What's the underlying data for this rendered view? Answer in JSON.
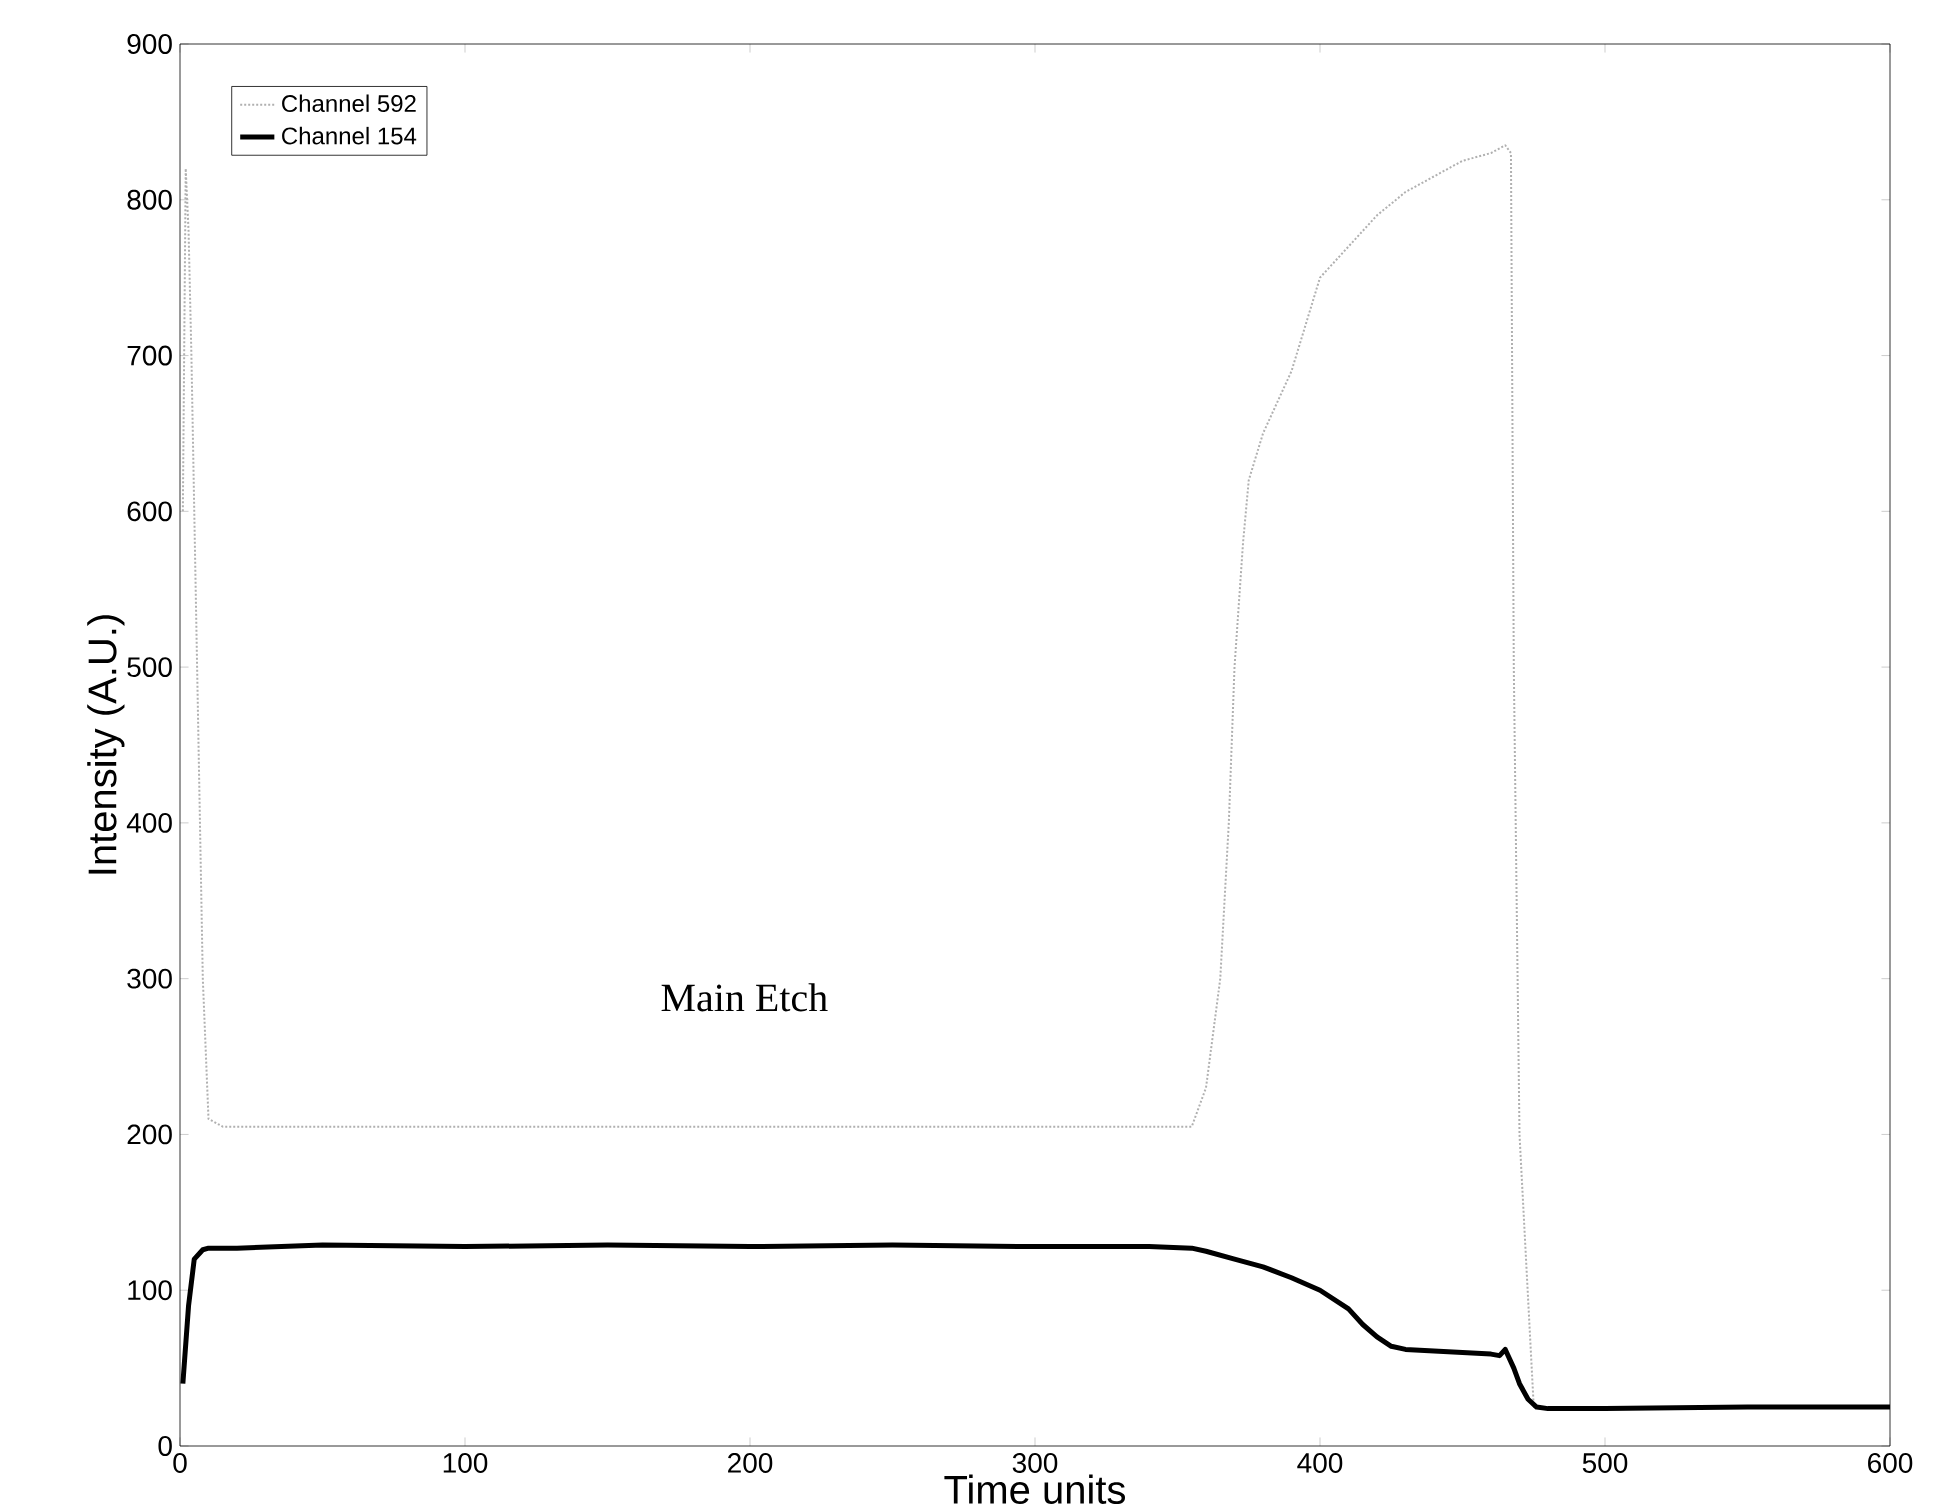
{
  "chart_data": {
    "type": "line",
    "xlabel": "Time units",
    "ylabel": "Intensity (A.U.)",
    "xlim": [
      0,
      600
    ],
    "ylim": [
      0,
      900
    ],
    "xticks": [
      0,
      100,
      200,
      300,
      400,
      500,
      600
    ],
    "yticks": [
      0,
      100,
      200,
      300,
      400,
      500,
      600,
      700,
      800,
      900
    ],
    "grid": false,
    "legend": "top left",
    "annotations": [
      "Main Etch"
    ],
    "series": [
      {
        "name": "Channel 592",
        "color": "#b0b0b0",
        "line_style": "dotted",
        "x": [
          1,
          2,
          3,
          4,
          5,
          6,
          7,
          8,
          10,
          15,
          50,
          100,
          150,
          200,
          250,
          300,
          340,
          355,
          360,
          365,
          368,
          370,
          373,
          375,
          380,
          385,
          390,
          395,
          400,
          410,
          420,
          430,
          440,
          450,
          460,
          465,
          467,
          468,
          470,
          475,
          500,
          550,
          600
        ],
        "values": [
          600,
          820,
          780,
          700,
          600,
          500,
          400,
          300,
          210,
          205,
          205,
          205,
          205,
          205,
          205,
          205,
          205,
          205,
          230,
          300,
          400,
          500,
          580,
          620,
          650,
          670,
          690,
          720,
          750,
          770,
          790,
          805,
          815,
          825,
          830,
          835,
          830,
          500,
          200,
          25,
          25,
          25,
          25
        ]
      },
      {
        "name": "Channel 154",
        "color": "#000000",
        "line_style": "solid",
        "x": [
          1,
          3,
          5,
          8,
          10,
          20,
          50,
          100,
          150,
          200,
          250,
          300,
          340,
          355,
          360,
          370,
          380,
          390,
          400,
          410,
          415,
          420,
          425,
          430,
          450,
          460,
          463,
          465,
          468,
          470,
          473,
          476,
          480,
          500,
          550,
          600
        ],
        "values": [
          40,
          90,
          120,
          126,
          127,
          127,
          129,
          128,
          129,
          128,
          129,
          128,
          128,
          127,
          125,
          120,
          115,
          108,
          100,
          88,
          78,
          70,
          64,
          62,
          60,
          59,
          58,
          62,
          50,
          40,
          30,
          25,
          24,
          24,
          25,
          25
        ]
      }
    ]
  }
}
